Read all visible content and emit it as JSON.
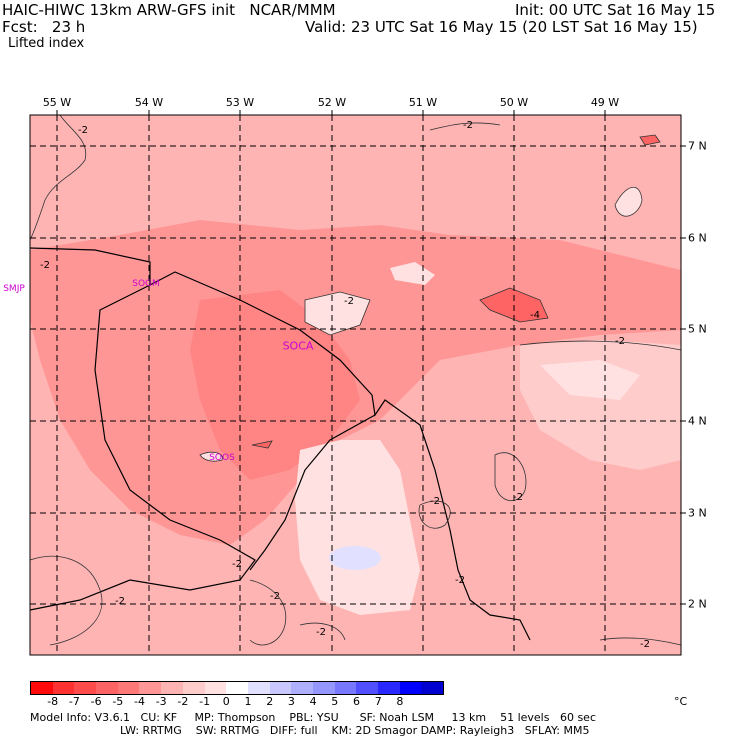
{
  "header": {
    "title": "HAIC-HIWC 13km ARW-GFS init   NCAR/MMM",
    "init": "Init: 00 UTC Sat 16 May 15",
    "fcst": "Fcst:   23 h",
    "valid": "Valid: 23 UTC Sat 16 May 15 (20 LST Sat 16 May 15)",
    "field": "Lifted index"
  },
  "map": {
    "lon_labels": [
      "55 W",
      "54 W",
      "53 W",
      "52 W",
      "51 W",
      "50 W",
      "49 W"
    ],
    "lat_labels": [
      "7 N",
      "6 N",
      "5 N",
      "4 N",
      "3 N",
      "2 N"
    ],
    "stations": [
      "SMJP",
      "SOGM",
      "SOCA",
      "SOOS"
    ],
    "contour_labels": [
      "-2",
      "-2",
      "-2",
      "-2",
      "-4",
      "-2",
      "-2",
      "-2",
      "-2",
      "-2",
      "-2",
      "-2",
      "-2",
      "-2"
    ]
  },
  "colorbar": {
    "ticks": [
      "-8",
      "-7",
      "-6",
      "-5",
      "-4",
      "-3",
      "-2",
      "-1",
      "0",
      "1",
      "2",
      "3",
      "4",
      "5",
      "6",
      "7",
      "8"
    ],
    "unit": "°C",
    "colors": [
      "#ff0a0a",
      "#ff3232",
      "#ff4b4b",
      "#ff6464",
      "#ff7878",
      "#ff9696",
      "#ffb4b4",
      "#ffcccc",
      "#ffe1e1",
      "#ffffff",
      "#e1e1ff",
      "#c8c8ff",
      "#afafff",
      "#9696ff",
      "#7878ff",
      "#5050ff",
      "#2828ff",
      "#0000ff",
      "#0000d0"
    ]
  },
  "footer": {
    "line1": "Model Info: V3.6.1   CU: KF     MP: Thompson    PBL: YSU      SF: Noah LSM     13 km    51 levels   60 sec",
    "line2": "LW: RRTMG    SW: RRTMG   DIFF: full    KM: 2D Smagor DAMP: Rayleigh3   SFLAY: MM5"
  }
}
